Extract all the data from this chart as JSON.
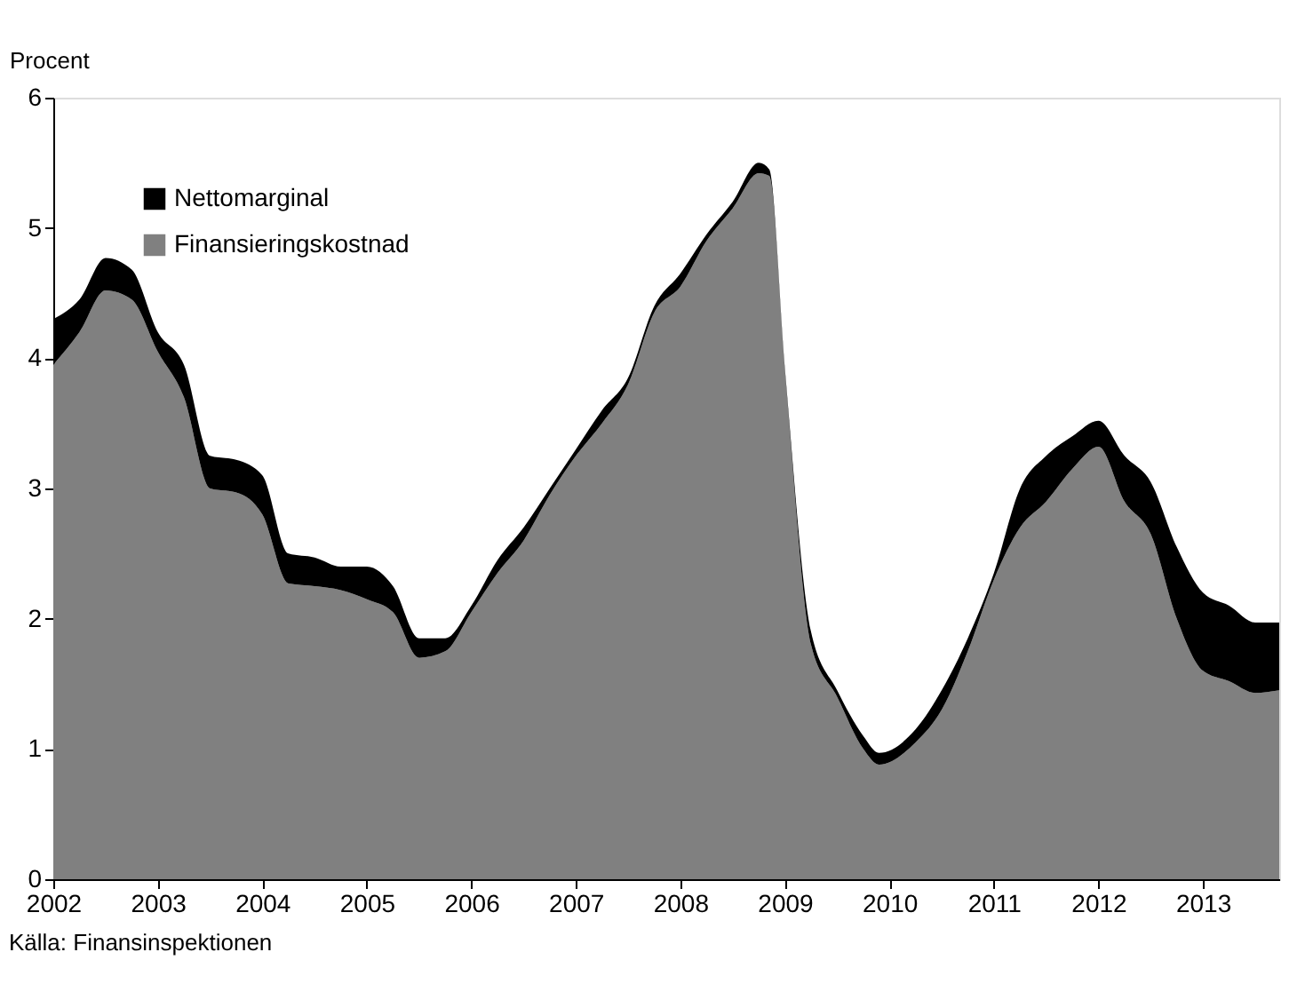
{
  "chart_data": {
    "type": "area",
    "stacked": true,
    "ylabel": "Procent",
    "x": [
      2002.0,
      2002.25,
      2002.5,
      2002.75,
      2003.0,
      2003.25,
      2003.5,
      2003.75,
      2004.0,
      2004.25,
      2004.5,
      2004.75,
      2005.0,
      2005.25,
      2005.5,
      2005.75,
      2006.0,
      2006.25,
      2006.5,
      2006.75,
      2007.0,
      2007.25,
      2007.5,
      2007.75,
      2008.0,
      2008.25,
      2008.5,
      2008.75,
      2008.85,
      2009.0,
      2009.25,
      2009.5,
      2009.75,
      2009.9,
      2010.25,
      2010.5,
      2010.75,
      2011.0,
      2011.25,
      2011.5,
      2011.75,
      2012.0,
      2012.25,
      2012.5,
      2012.75,
      2013.0,
      2013.25,
      2013.5,
      2013.73
    ],
    "series": [
      {
        "name": "Finansieringskostnad",
        "color": "#808080",
        "values": [
          3.95,
          4.2,
          4.52,
          4.45,
          4.05,
          3.7,
          3.0,
          2.97,
          2.8,
          2.27,
          2.25,
          2.22,
          2.15,
          2.05,
          1.7,
          1.75,
          2.05,
          2.35,
          2.6,
          2.95,
          3.25,
          3.5,
          3.8,
          4.35,
          4.55,
          4.9,
          5.15,
          5.42,
          5.4,
          3.9,
          1.8,
          1.4,
          1.0,
          0.88,
          1.05,
          1.3,
          1.75,
          2.3,
          2.7,
          2.9,
          3.15,
          3.32,
          2.9,
          2.65,
          2.0,
          1.6,
          1.52,
          1.43,
          1.45
        ]
      },
      {
        "name": "Nettomarginal",
        "color": "#000000",
        "values": [
          0.35,
          0.25,
          0.25,
          0.23,
          0.15,
          0.25,
          0.25,
          0.25,
          0.3,
          0.23,
          0.22,
          0.18,
          0.25,
          0.2,
          0.15,
          0.1,
          0.05,
          0.1,
          0.1,
          0.05,
          0.05,
          0.1,
          0.05,
          0.05,
          0.1,
          0.05,
          0.05,
          0.08,
          0.05,
          0.02,
          0.1,
          0.05,
          0.1,
          0.09,
          0.1,
          0.15,
          0.1,
          0.05,
          0.3,
          0.35,
          0.25,
          0.2,
          0.35,
          0.4,
          0.55,
          0.6,
          0.58,
          0.54,
          0.52
        ]
      }
    ],
    "xlim": [
      2002,
      2013.73
    ],
    "xticks": [
      2002,
      2003,
      2004,
      2005,
      2006,
      2007,
      2008,
      2009,
      2010,
      2011,
      2012,
      2013
    ],
    "ylim": [
      0,
      6
    ],
    "yticks": [
      0,
      1,
      2,
      3,
      4,
      5,
      6
    ],
    "grid": false,
    "legend": "top left",
    "annotations": [
      "Källa: Finansinspektionen"
    ]
  }
}
